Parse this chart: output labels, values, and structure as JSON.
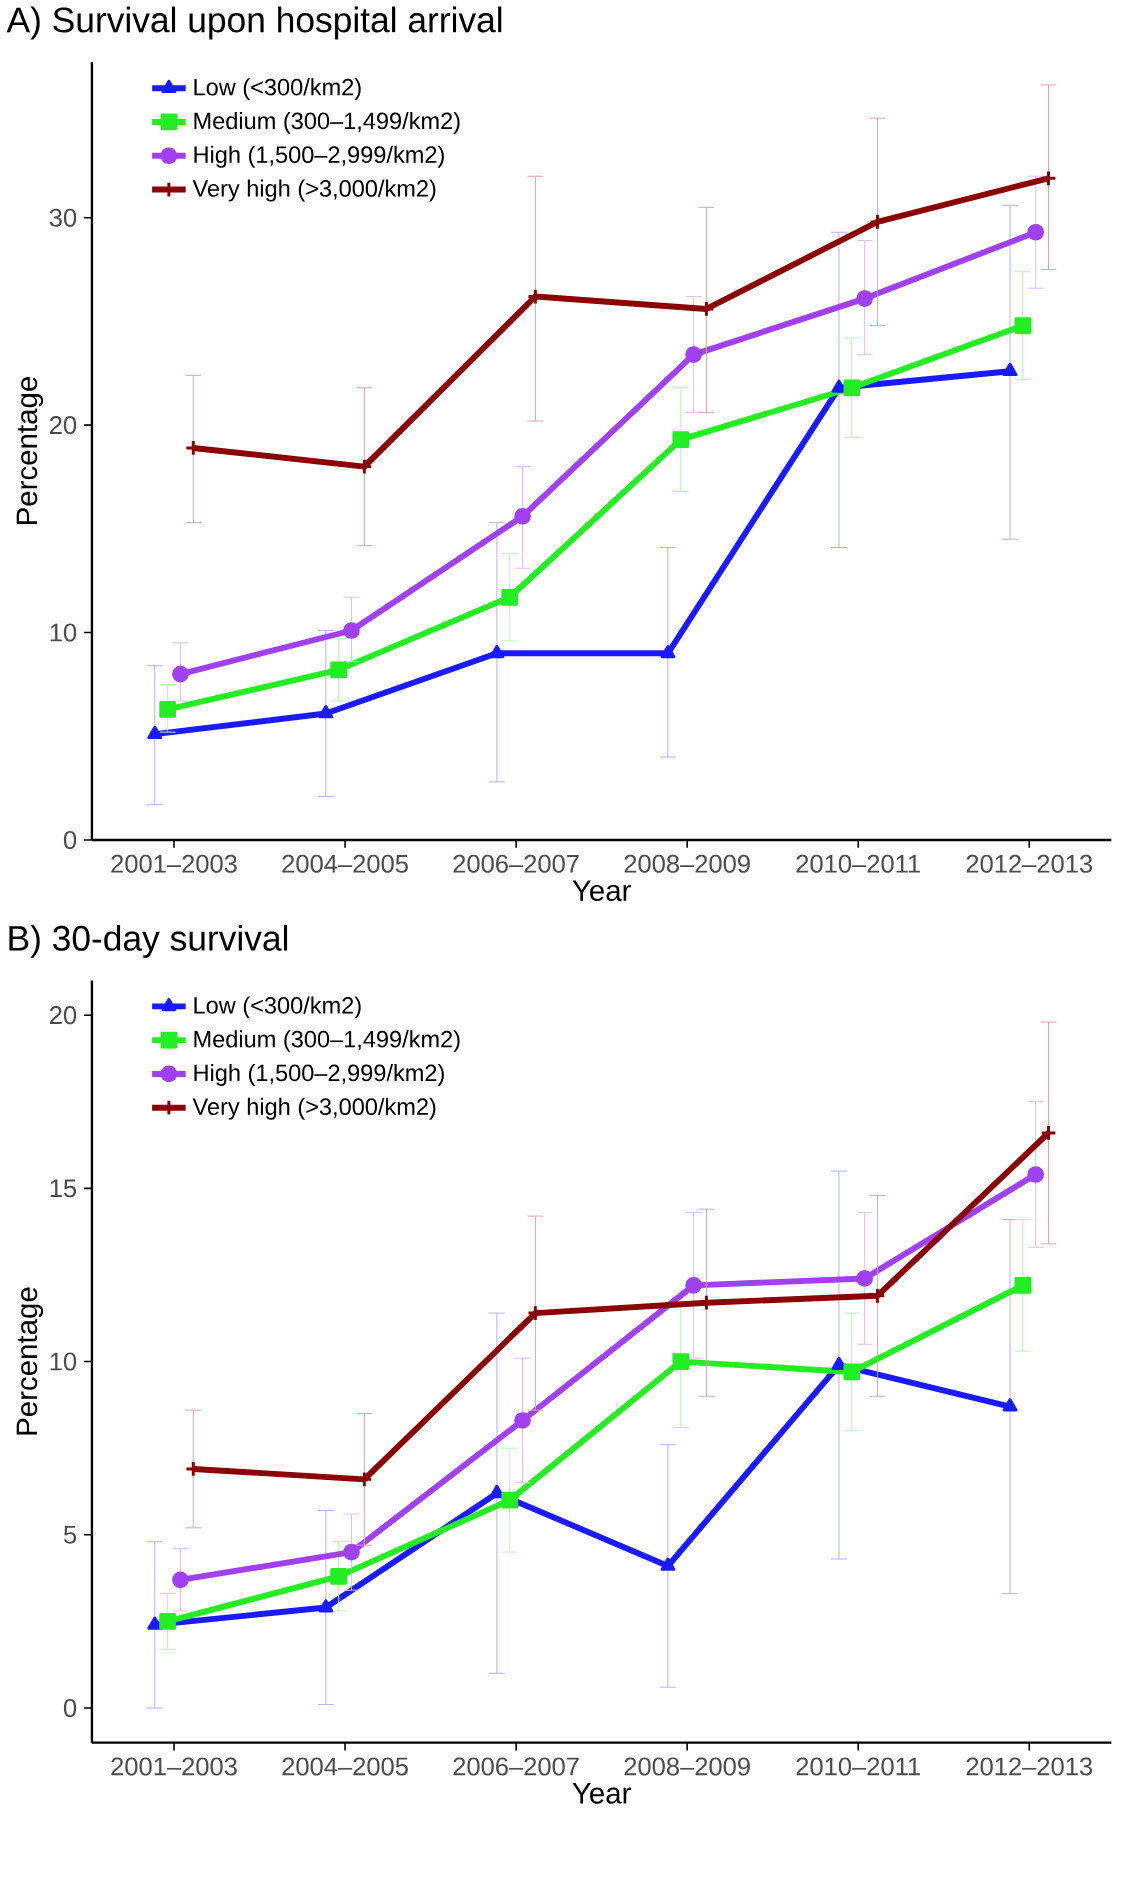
{
  "chart_data": [
    {
      "type": "line",
      "title": "A) Survival upon hospital arrival",
      "xlabel": "Year",
      "ylabel": "Percentage",
      "categories": [
        "2001–2003",
        "2004–2005",
        "2006–2007",
        "2008–2009",
        "2010–2011",
        "2012–2013"
      ],
      "series": [
        {
          "name": "Low (<300/km2)",
          "color": "#1a1aff",
          "marker": "triangle",
          "values": [
            5.1,
            6.1,
            9.0,
            9.0,
            21.8,
            22.6
          ],
          "errors": [
            [
              1.7,
              8.4
            ],
            [
              2.1,
              10.1
            ],
            [
              2.8,
              15.3
            ],
            [
              4.0,
              14.1
            ],
            [
              14.1,
              29.3
            ],
            [
              14.5,
              30.6
            ]
          ]
        },
        {
          "name": "Medium (300–1,499/km2)",
          "color": "#22ee22",
          "marker": "square",
          "values": [
            6.3,
            8.2,
            11.7,
            19.3,
            21.8,
            24.8
          ],
          "errors": [
            [
              5.2,
              7.5
            ],
            [
              6.7,
              9.7
            ],
            [
              9.6,
              13.8
            ],
            [
              16.8,
              21.8
            ],
            [
              19.4,
              24.2
            ],
            [
              22.2,
              27.4
            ]
          ]
        },
        {
          "name": "High (1,500–2,999/km2)",
          "color": "#a040f0",
          "marker": "circle",
          "values": [
            8.0,
            10.1,
            15.6,
            23.4,
            26.1,
            29.3
          ],
          "errors": [
            [
              6.7,
              9.5
            ],
            [
              8.6,
              11.7
            ],
            [
              13.1,
              18.0
            ],
            [
              20.6,
              26.2
            ],
            [
              23.4,
              28.9
            ],
            [
              26.6,
              32.0
            ]
          ]
        },
        {
          "name": "Very high (>3,000/km2)",
          "color": "#8b0000",
          "marker": "cross",
          "values": [
            18.9,
            18.0,
            26.2,
            25.6,
            29.8,
            31.9
          ],
          "errors": [
            [
              15.3,
              22.4
            ],
            [
              14.2,
              21.8
            ],
            [
              20.2,
              32.0
            ],
            [
              20.6,
              30.5
            ],
            [
              24.8,
              34.8
            ],
            [
              27.5,
              36.4
            ]
          ]
        }
      ],
      "ylim": [
        0,
        37.5
      ],
      "yticks": [
        0,
        10,
        20,
        30
      ],
      "legend": "top left",
      "line_style": "solid"
    },
    {
      "type": "line",
      "title": "B) 30-day survival",
      "xlabel": "Year",
      "ylabel": "Percentage",
      "categories": [
        "2001–2003",
        "2004–2005",
        "2006–2007",
        "2008–2009",
        "2010–2011",
        "2012–2013"
      ],
      "series": [
        {
          "name": "Low (<300/km2)",
          "color": "#1a1aff",
          "marker": "triangle",
          "values": [
            2.4,
            2.9,
            6.2,
            4.1,
            9.9,
            8.7
          ],
          "errors": [
            [
              0.0,
              4.8
            ],
            [
              0.1,
              5.7
            ],
            [
              1.0,
              11.4
            ],
            [
              0.6,
              7.6
            ],
            [
              4.3,
              15.5
            ],
            [
              3.3,
              14.1
            ]
          ]
        },
        {
          "name": "Medium (300–1,499/km2)",
          "color": "#22ee22",
          "marker": "square",
          "values": [
            2.5,
            3.8,
            6.0,
            10.0,
            9.7,
            12.2
          ],
          "errors": [
            [
              1.7,
              3.3
            ],
            [
              2.8,
              4.8
            ],
            [
              4.5,
              7.5
            ],
            [
              8.1,
              11.9
            ],
            [
              8.0,
              11.4
            ],
            [
              10.3,
              14.1
            ]
          ]
        },
        {
          "name": "High (1,500–2,999/km2)",
          "color": "#a040f0",
          "marker": "circle",
          "values": [
            3.7,
            4.5,
            8.3,
            12.2,
            12.4,
            15.4
          ],
          "errors": [
            [
              2.8,
              4.6
            ],
            [
              3.4,
              5.6
            ],
            [
              6.5,
              10.1
            ],
            [
              10.1,
              14.3
            ],
            [
              10.5,
              14.3
            ],
            [
              13.3,
              17.5
            ]
          ]
        },
        {
          "name": "Very high (>3,000/km2)",
          "color": "#8b0000",
          "marker": "cross",
          "values": [
            6.9,
            6.6,
            11.4,
            11.7,
            11.9,
            16.6
          ],
          "errors": [
            [
              5.2,
              8.6
            ],
            [
              4.7,
              8.5
            ],
            [
              8.6,
              14.2
            ],
            [
              9.0,
              14.4
            ],
            [
              9.0,
              14.8
            ],
            [
              13.4,
              19.8
            ]
          ]
        }
      ],
      "ylim": [
        -1,
        21
      ],
      "yticks": [
        0,
        5,
        10,
        15,
        20
      ],
      "legend": "top left",
      "line_style": "solid"
    }
  ]
}
